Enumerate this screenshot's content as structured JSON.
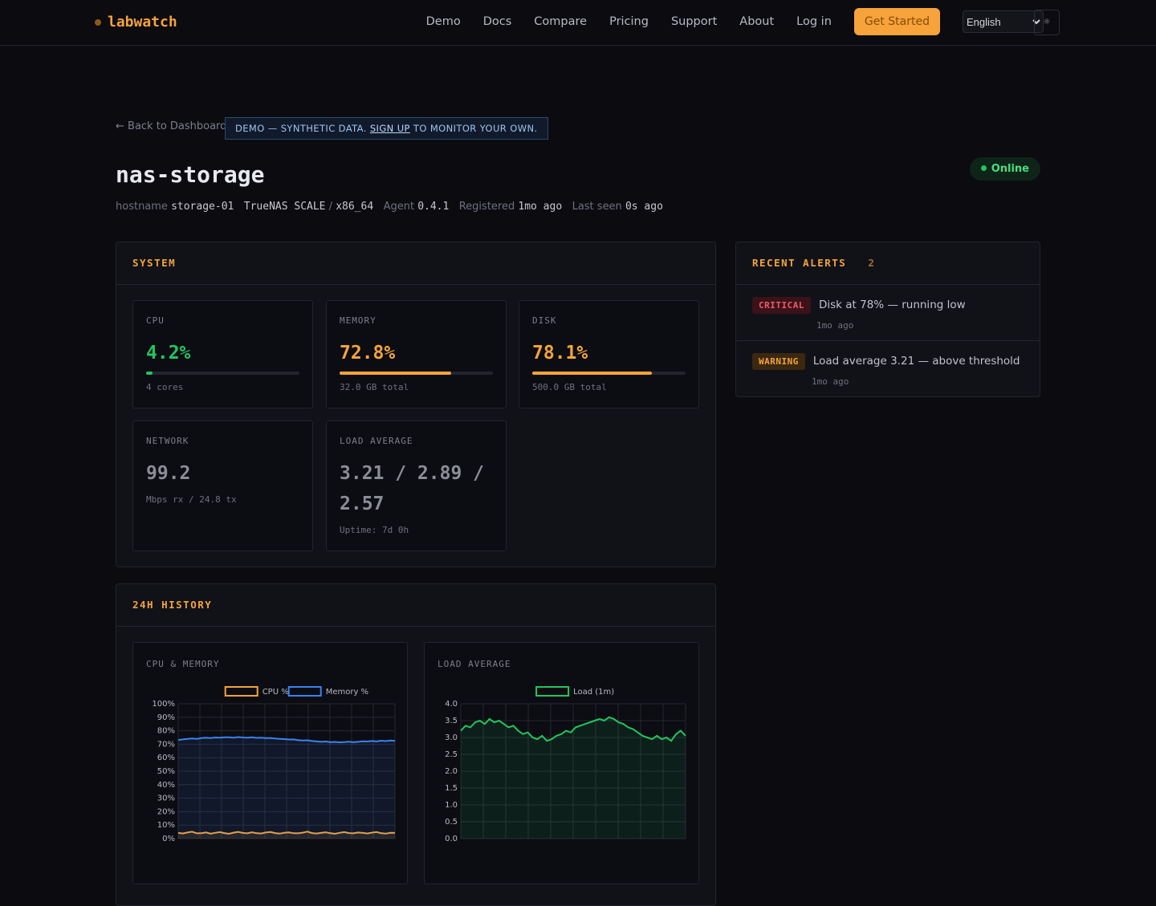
{
  "nav": {
    "brand": "labwatch",
    "links": [
      "Demo",
      "Docs",
      "Compare",
      "Pricing",
      "Support",
      "About",
      "Log in"
    ],
    "cta": "Get Started",
    "language": "English",
    "theme_icon": "☼"
  },
  "header": {
    "back": "← Back to Dashboard",
    "demo_banner": {
      "prefix": "DEMO — SYNTHETIC DATA.",
      "link": "SIGN UP",
      "suffix": "TO MONITOR YOUR OWN."
    },
    "title": "nas-storage",
    "status": "Online",
    "meta": {
      "hostname_label": "hostname",
      "hostname": "storage-01",
      "os": "TrueNAS SCALE",
      "separator": "/",
      "arch": "x86_64",
      "agent_label": "Agent",
      "agent": "0.4.1",
      "registered_label": "Registered",
      "registered": "1mo ago",
      "last_seen_label": "Last seen",
      "last_seen": "0s ago"
    }
  },
  "system": {
    "title": "SYSTEM",
    "metrics": [
      {
        "label": "CPU",
        "value": "4.2%",
        "percent": 4.2,
        "note": "4 cores"
      },
      {
        "label": "MEMORY",
        "value": "72.8%",
        "percent": 72.8,
        "note": "32.0 GB total"
      },
      {
        "label": "DISK",
        "value": "78.1%",
        "percent": 78.1,
        "note": "500.0 GB total"
      },
      {
        "label": "NETWORK",
        "value": "99.2",
        "note": "Mbps rx / 24.8 tx"
      },
      {
        "label": "LOAD AVERAGE",
        "value": "3.21 / 2.89 / 2.57",
        "note": "Uptime: 7d 0h"
      }
    ]
  },
  "alerts": {
    "title": "RECENT ALERTS",
    "count": "2",
    "items": [
      {
        "level": "CRITICAL",
        "text": "Disk at 78% — running low",
        "time": "1mo ago"
      },
      {
        "level": "WARNING",
        "text": "Load average 3.21 — above threshold",
        "time": "1mo ago"
      }
    ]
  },
  "history": {
    "title": "24H HISTORY"
  },
  "chart_data": [
    {
      "type": "line",
      "title": "CPU & MEMORY",
      "ylim": [
        0,
        100
      ],
      "grid": true,
      "yticks": [
        {
          "value": 0,
          "label": "0%"
        },
        {
          "value": 10,
          "label": "10%"
        },
        {
          "value": 20,
          "label": "20%"
        },
        {
          "value": 30,
          "label": "30%"
        },
        {
          "value": 40,
          "label": "40%"
        },
        {
          "value": 50,
          "label": "50%"
        },
        {
          "value": 60,
          "label": "60%"
        },
        {
          "value": 70,
          "label": "70%"
        },
        {
          "value": 80,
          "label": "80%"
        },
        {
          "value": 90,
          "label": "90%"
        },
        {
          "value": 100,
          "label": "100%"
        }
      ],
      "series": [
        {
          "name": "CPU %",
          "color": "#f5a33a",
          "values": [
            4.2,
            3.8,
            4.5,
            5.1,
            3.9,
            4.0,
            4.6,
            3.7,
            4.3,
            4.8,
            4.1,
            3.6,
            4.4,
            5.0,
            4.2,
            3.9,
            4.7,
            4.0,
            3.8,
            4.5,
            4.9,
            4.1,
            3.7,
            4.3,
            4.6,
            4.0,
            3.9,
            4.4,
            5.2,
            4.1,
            3.8,
            4.2,
            4.7,
            4.0,
            3.6,
            4.3,
            4.8,
            4.1,
            3.9,
            4.5,
            4.2,
            3.8,
            4.4,
            4.9,
            4.0,
            3.7,
            4.3,
            4.2
          ]
        },
        {
          "name": "Memory %",
          "color": "#3b82f6",
          "values": [
            73.1,
            73.6,
            73.9,
            74.2,
            74.0,
            74.5,
            74.8,
            74.6,
            75.0,
            74.9,
            75.2,
            75.1,
            74.8,
            75.3,
            75.0,
            74.9,
            75.2,
            74.7,
            74.9,
            74.5,
            74.6,
            74.2,
            74.0,
            73.8,
            73.5,
            73.6,
            73.0,
            72.8,
            72.9,
            72.4,
            72.1,
            71.8,
            72.0,
            71.5,
            71.7,
            71.4,
            71.6,
            71.9,
            71.5,
            71.8,
            72.2,
            72.0,
            72.4,
            72.1,
            72.6,
            72.3,
            72.8,
            72.5
          ]
        }
      ]
    },
    {
      "type": "line",
      "title": "LOAD AVERAGE",
      "ylim": [
        0,
        4
      ],
      "grid": true,
      "yticks": [
        {
          "value": 0,
          "label": "0.0"
        },
        0.5,
        {
          "value": 1,
          "label": "1.0"
        },
        1.5,
        {
          "value": 2,
          "label": "2.0"
        },
        2.5,
        {
          "value": 3,
          "label": "3.0"
        },
        3.5,
        {
          "value": 4,
          "label": "4.0"
        }
      ],
      "series": [
        {
          "name": "Load (1m)",
          "color": "#22c55e",
          "values": [
            3.2,
            3.35,
            3.3,
            3.45,
            3.5,
            3.4,
            3.55,
            3.45,
            3.5,
            3.4,
            3.3,
            3.35,
            3.2,
            3.1,
            3.15,
            3.0,
            2.95,
            3.05,
            2.9,
            2.95,
            3.05,
            3.1,
            3.2,
            3.15,
            3.3,
            3.35,
            3.4,
            3.45,
            3.5,
            3.55,
            3.5,
            3.6,
            3.55,
            3.45,
            3.4,
            3.3,
            3.25,
            3.15,
            3.05,
            3.0,
            2.95,
            3.05,
            2.95,
            3.0,
            2.9,
            3.1,
            3.2,
            3.05
          ]
        }
      ]
    }
  ]
}
